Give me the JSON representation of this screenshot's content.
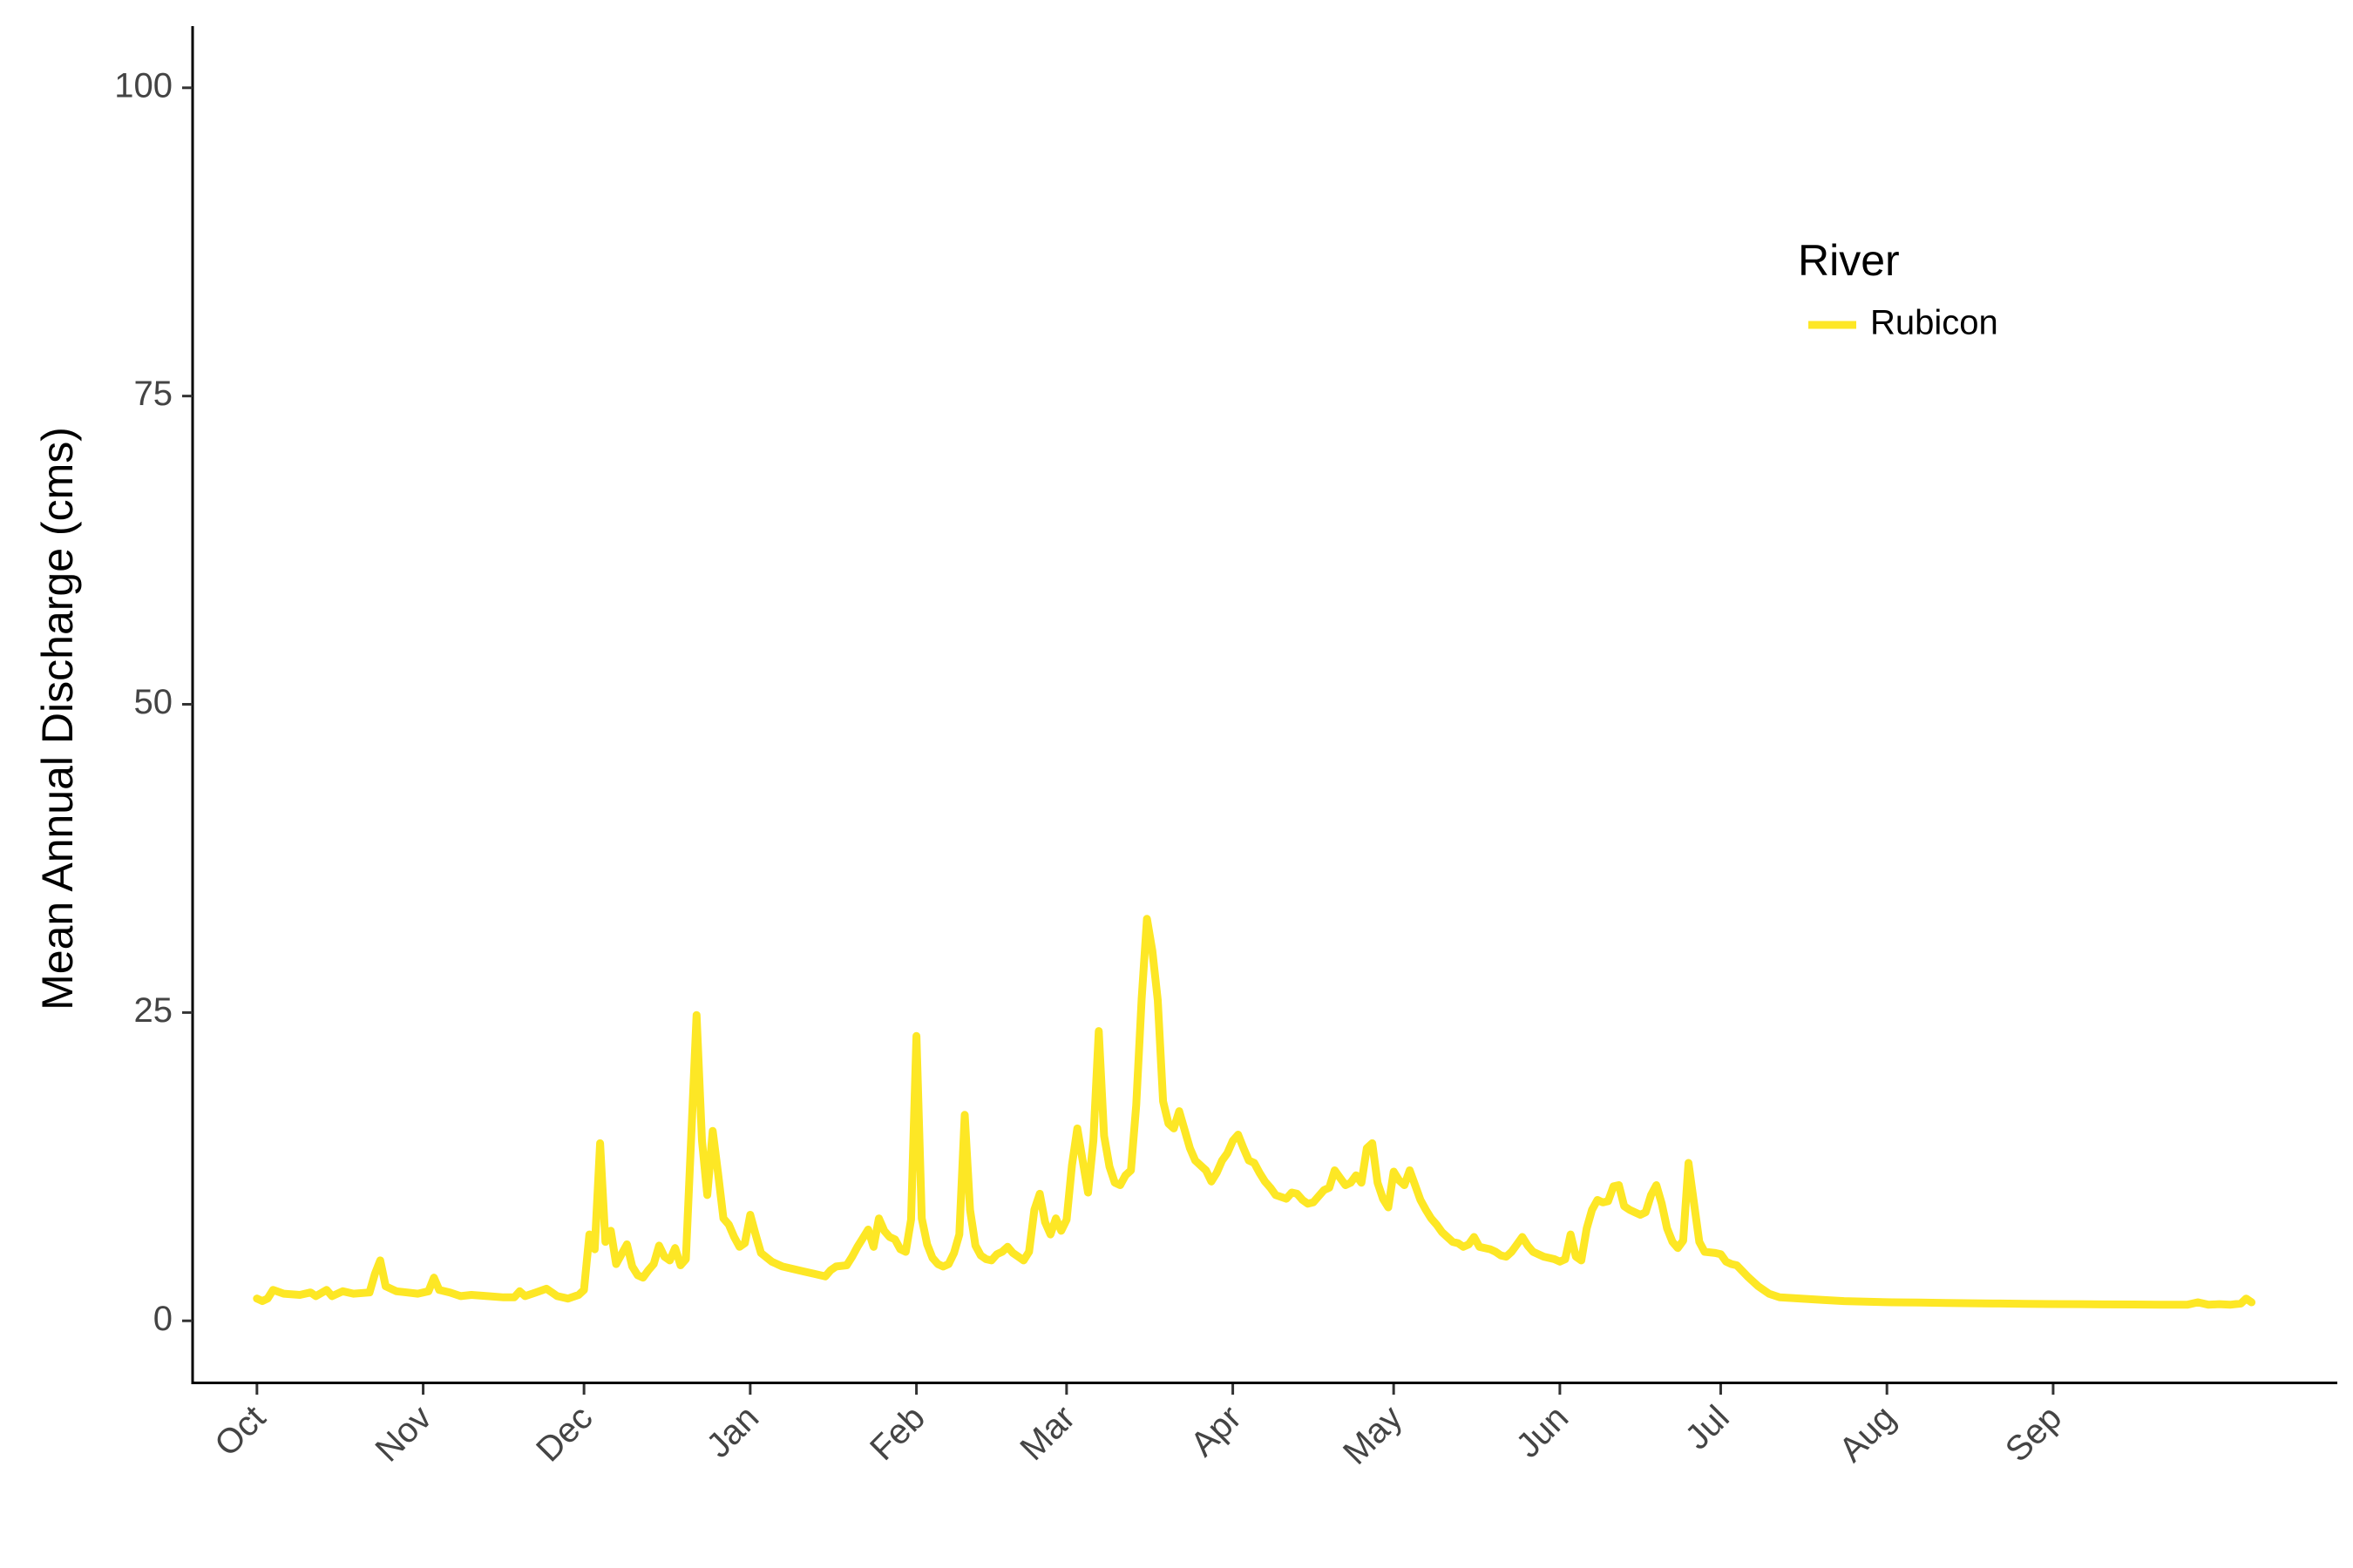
{
  "chart_data": {
    "type": "line",
    "title": "",
    "xlabel": "",
    "ylabel": "Mean Annual Discharge (cms)",
    "ylim": [
      -5,
      105
    ],
    "y_ticks": [
      0,
      25,
      50,
      75,
      100
    ],
    "x_range_days": [
      -12,
      388
    ],
    "x_ticks": [
      {
        "label": "Oct",
        "day": 0
      },
      {
        "label": "Nov",
        "day": 31
      },
      {
        "label": "Dec",
        "day": 61
      },
      {
        "label": "Jan",
        "day": 92
      },
      {
        "label": "Feb",
        "day": 123
      },
      {
        "label": "Mar",
        "day": 151
      },
      {
        "label": "Apr",
        "day": 182
      },
      {
        "label": "May",
        "day": 212
      },
      {
        "label": "Jun",
        "day": 243
      },
      {
        "label": "Jul",
        "day": 273
      },
      {
        "label": "Aug",
        "day": 304
      },
      {
        "label": "Sep",
        "day": 335
      }
    ],
    "grid": false,
    "legend": {
      "title": "River",
      "position": "top-right"
    },
    "series": [
      {
        "name": "Rubicon",
        "color": "#FDE725",
        "points": [
          [
            0,
            1.8
          ],
          [
            1,
            1.6
          ],
          [
            2,
            1.8
          ],
          [
            3,
            2.5
          ],
          [
            5,
            2.2
          ],
          [
            8,
            2.1
          ],
          [
            10,
            2.3
          ],
          [
            11,
            2.0
          ],
          [
            13,
            2.5
          ],
          [
            14,
            2.0
          ],
          [
            16,
            2.4
          ],
          [
            18,
            2.2
          ],
          [
            21,
            2.3
          ],
          [
            22,
            3.8
          ],
          [
            23,
            4.9
          ],
          [
            24,
            2.8
          ],
          [
            26,
            2.4
          ],
          [
            28,
            2.3
          ],
          [
            30,
            2.2
          ],
          [
            32,
            2.4
          ],
          [
            33,
            3.5
          ],
          [
            34,
            2.5
          ],
          [
            36,
            2.3
          ],
          [
            38,
            2.0
          ],
          [
            40,
            2.1
          ],
          [
            43,
            2.0
          ],
          [
            46,
            1.9
          ],
          [
            48,
            1.9
          ],
          [
            49,
            2.4
          ],
          [
            50,
            2.0
          ],
          [
            52,
            2.3
          ],
          [
            54,
            2.6
          ],
          [
            56,
            2.0
          ],
          [
            58,
            1.8
          ],
          [
            60,
            2.1
          ],
          [
            61,
            2.5
          ],
          [
            62,
            7.0
          ],
          [
            63,
            5.8
          ],
          [
            64,
            14.4
          ],
          [
            65,
            6.4
          ],
          [
            66,
            7.3
          ],
          [
            67,
            4.6
          ],
          [
            68,
            5.4
          ],
          [
            69,
            6.2
          ],
          [
            70,
            4.4
          ],
          [
            71,
            3.7
          ],
          [
            72,
            3.5
          ],
          [
            73,
            4.1
          ],
          [
            74,
            4.6
          ],
          [
            75,
            6.1
          ],
          [
            76,
            5.2
          ],
          [
            77,
            4.9
          ],
          [
            78,
            5.9
          ],
          [
            79,
            4.5
          ],
          [
            80,
            5.0
          ],
          [
            81,
            15.0
          ],
          [
            82,
            24.8
          ],
          [
            83,
            14.6
          ],
          [
            84,
            10.2
          ],
          [
            85,
            15.4
          ],
          [
            86,
            12.0
          ],
          [
            87,
            8.3
          ],
          [
            88,
            7.8
          ],
          [
            89,
            6.8
          ],
          [
            90,
            6.0
          ],
          [
            91,
            6.3
          ],
          [
            92,
            8.6
          ],
          [
            93,
            7.0
          ],
          [
            94,
            5.5
          ],
          [
            96,
            4.8
          ],
          [
            98,
            4.4
          ],
          [
            100,
            4.2
          ],
          [
            102,
            4.0
          ],
          [
            104,
            3.8
          ],
          [
            106,
            3.6
          ],
          [
            107,
            4.1
          ],
          [
            108,
            4.4
          ],
          [
            110,
            4.5
          ],
          [
            111,
            5.2
          ],
          [
            112,
            6.0
          ],
          [
            113,
            6.7
          ],
          [
            114,
            7.4
          ],
          [
            115,
            6.0
          ],
          [
            116,
            8.3
          ],
          [
            117,
            7.3
          ],
          [
            118,
            6.8
          ],
          [
            119,
            6.6
          ],
          [
            120,
            5.8
          ],
          [
            121,
            5.6
          ],
          [
            122,
            8.2
          ],
          [
            123,
            23.1
          ],
          [
            124,
            8.3
          ],
          [
            125,
            6.2
          ],
          [
            126,
            5.1
          ],
          [
            127,
            4.6
          ],
          [
            128,
            4.4
          ],
          [
            129,
            4.6
          ],
          [
            130,
            5.5
          ],
          [
            131,
            7.0
          ],
          [
            132,
            16.7
          ],
          [
            133,
            9.0
          ],
          [
            134,
            6.1
          ],
          [
            135,
            5.3
          ],
          [
            136,
            5.0
          ],
          [
            137,
            4.9
          ],
          [
            138,
            5.4
          ],
          [
            139,
            5.6
          ],
          [
            140,
            6.0
          ],
          [
            141,
            5.5
          ],
          [
            142,
            5.2
          ],
          [
            143,
            4.9
          ],
          [
            144,
            5.6
          ],
          [
            145,
            9.0
          ],
          [
            146,
            10.3
          ],
          [
            147,
            8.0
          ],
          [
            148,
            7.0
          ],
          [
            149,
            8.3
          ],
          [
            150,
            7.3
          ],
          [
            151,
            8.2
          ],
          [
            152,
            12.6
          ],
          [
            153,
            15.6
          ],
          [
            154,
            13.0
          ],
          [
            155,
            10.4
          ],
          [
            156,
            14.6
          ],
          [
            157,
            23.5
          ],
          [
            158,
            15.0
          ],
          [
            159,
            12.5
          ],
          [
            160,
            11.2
          ],
          [
            161,
            11.0
          ],
          [
            162,
            11.8
          ],
          [
            163,
            12.2
          ],
          [
            164,
            17.5
          ],
          [
            165,
            26.1
          ],
          [
            166,
            32.6
          ],
          [
            167,
            30.0
          ],
          [
            168,
            26.0
          ],
          [
            169,
            17.8
          ],
          [
            170,
            16.0
          ],
          [
            171,
            15.6
          ],
          [
            172,
            17.0
          ],
          [
            173,
            15.5
          ],
          [
            174,
            14.0
          ],
          [
            175,
            13.0
          ],
          [
            176,
            12.6
          ],
          [
            177,
            12.2
          ],
          [
            178,
            11.3
          ],
          [
            179,
            12.0
          ],
          [
            180,
            13.0
          ],
          [
            181,
            13.6
          ],
          [
            182,
            14.6
          ],
          [
            183,
            15.1
          ],
          [
            184,
            14.0
          ],
          [
            185,
            13.0
          ],
          [
            186,
            12.8
          ],
          [
            187,
            12.0
          ],
          [
            188,
            11.3
          ],
          [
            189,
            10.8
          ],
          [
            190,
            10.2
          ],
          [
            192,
            9.9
          ],
          [
            193,
            10.4
          ],
          [
            194,
            10.3
          ],
          [
            195,
            9.8
          ],
          [
            196,
            9.5
          ],
          [
            197,
            9.6
          ],
          [
            198,
            10.1
          ],
          [
            199,
            10.6
          ],
          [
            200,
            10.8
          ],
          [
            201,
            12.2
          ],
          [
            202,
            11.6
          ],
          [
            203,
            11.0
          ],
          [
            204,
            11.2
          ],
          [
            205,
            11.8
          ],
          [
            206,
            11.2
          ],
          [
            207,
            14.0
          ],
          [
            208,
            14.4
          ],
          [
            209,
            11.2
          ],
          [
            210,
            9.9
          ],
          [
            211,
            9.2
          ],
          [
            212,
            12.1
          ],
          [
            213,
            11.4
          ],
          [
            214,
            11.0
          ],
          [
            215,
            12.2
          ],
          [
            216,
            11.0
          ],
          [
            217,
            9.8
          ],
          [
            218,
            9.0
          ],
          [
            219,
            8.3
          ],
          [
            220,
            7.8
          ],
          [
            221,
            7.2
          ],
          [
            222,
            6.8
          ],
          [
            223,
            6.4
          ],
          [
            224,
            6.3
          ],
          [
            225,
            6.0
          ],
          [
            226,
            6.2
          ],
          [
            227,
            6.8
          ],
          [
            228,
            6.0
          ],
          [
            230,
            5.8
          ],
          [
            231,
            5.6
          ],
          [
            232,
            5.3
          ],
          [
            233,
            5.2
          ],
          [
            234,
            5.6
          ],
          [
            235,
            6.2
          ],
          [
            236,
            6.8
          ],
          [
            237,
            6.1
          ],
          [
            238,
            5.6
          ],
          [
            240,
            5.2
          ],
          [
            242,
            5.0
          ],
          [
            243,
            4.8
          ],
          [
            244,
            5.0
          ],
          [
            245,
            7.0
          ],
          [
            246,
            5.2
          ],
          [
            247,
            4.9
          ],
          [
            248,
            7.5
          ],
          [
            249,
            9.0
          ],
          [
            250,
            9.8
          ],
          [
            251,
            9.6
          ],
          [
            252,
            9.7
          ],
          [
            253,
            10.9
          ],
          [
            254,
            11.0
          ],
          [
            255,
            9.3
          ],
          [
            256,
            9.0
          ],
          [
            257,
            8.8
          ],
          [
            258,
            8.6
          ],
          [
            259,
            8.8
          ],
          [
            260,
            10.2
          ],
          [
            261,
            11.0
          ],
          [
            262,
            9.5
          ],
          [
            263,
            7.5
          ],
          [
            264,
            6.4
          ],
          [
            265,
            5.9
          ],
          [
            266,
            6.5
          ],
          [
            267,
            12.8
          ],
          [
            268,
            9.6
          ],
          [
            269,
            6.4
          ],
          [
            270,
            5.6
          ],
          [
            272,
            5.5
          ],
          [
            273,
            5.4
          ],
          [
            274,
            4.8
          ],
          [
            275,
            4.6
          ],
          [
            276,
            4.5
          ],
          [
            278,
            3.6
          ],
          [
            280,
            2.8
          ],
          [
            282,
            2.2
          ],
          [
            284,
            1.9
          ],
          [
            288,
            1.8
          ],
          [
            292,
            1.7
          ],
          [
            296,
            1.6
          ],
          [
            300,
            1.55
          ],
          [
            305,
            1.5
          ],
          [
            310,
            1.48
          ],
          [
            315,
            1.45
          ],
          [
            320,
            1.42
          ],
          [
            325,
            1.4
          ],
          [
            330,
            1.38
          ],
          [
            335,
            1.36
          ],
          [
            340,
            1.35
          ],
          [
            345,
            1.33
          ],
          [
            350,
            1.32
          ],
          [
            355,
            1.3
          ],
          [
            360,
            1.3
          ],
          [
            362,
            1.5
          ],
          [
            364,
            1.3
          ],
          [
            366,
            1.35
          ],
          [
            368,
            1.3
          ],
          [
            370,
            1.4
          ],
          [
            371,
            1.8
          ],
          [
            372,
            1.5
          ]
        ]
      }
    ]
  }
}
